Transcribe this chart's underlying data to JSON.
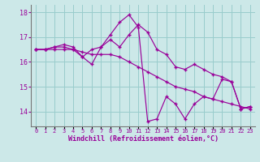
{
  "xlabel": "Windchill (Refroidissement éolien,°C)",
  "background_color": "#cce8e8",
  "line_color": "#990099",
  "grid_color": "#99cccc",
  "hours": [
    0,
    1,
    2,
    3,
    4,
    5,
    6,
    7,
    8,
    9,
    10,
    11,
    12,
    13,
    14,
    15,
    16,
    17,
    18,
    19,
    20,
    21,
    22,
    23
  ],
  "series1": [
    16.5,
    16.5,
    16.6,
    16.7,
    16.6,
    16.2,
    15.9,
    16.6,
    17.1,
    17.6,
    17.9,
    17.4,
    13.6,
    13.7,
    14.6,
    14.3,
    13.7,
    14.3,
    14.6,
    14.5,
    15.3,
    15.2,
    14.1,
    14.2
  ],
  "series2": [
    16.5,
    16.5,
    16.5,
    16.5,
    16.5,
    16.4,
    16.3,
    16.3,
    16.3,
    16.2,
    16.0,
    15.8,
    15.6,
    15.4,
    15.2,
    15.0,
    14.9,
    14.8,
    14.6,
    14.5,
    14.4,
    14.3,
    14.2,
    14.1
  ],
  "series3": [
    16.5,
    16.5,
    16.6,
    16.6,
    16.5,
    16.2,
    16.5,
    16.6,
    16.9,
    16.6,
    17.1,
    17.5,
    17.2,
    16.5,
    16.3,
    15.8,
    15.7,
    15.9,
    15.7,
    15.5,
    15.4,
    15.2,
    14.1,
    14.2
  ],
  "ylim": [
    13.4,
    18.3
  ],
  "yticks": [
    14,
    15,
    16,
    17,
    18
  ],
  "xlim": [
    -0.5,
    23.5
  ]
}
